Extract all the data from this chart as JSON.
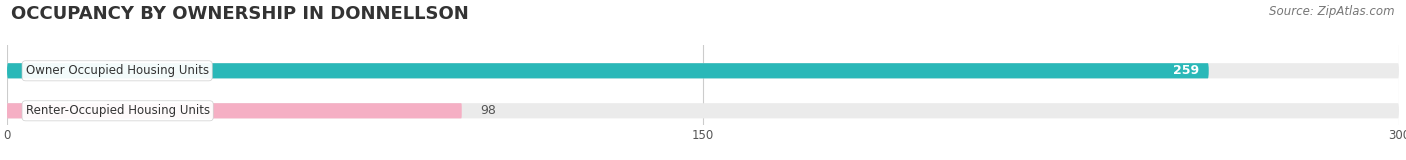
{
  "title": "OCCUPANCY BY OWNERSHIP IN DONNELLSON",
  "source": "Source: ZipAtlas.com",
  "categories": [
    "Owner Occupied Housing Units",
    "Renter-Occupied Housing Units"
  ],
  "values": [
    259,
    98
  ],
  "bar_colors": [
    "#2ab8b8",
    "#f5afc4"
  ],
  "xlim": [
    0,
    300
  ],
  "xticks": [
    0,
    150,
    300
  ],
  "title_fontsize": 13,
  "source_fontsize": 8.5,
  "bar_label_fontsize": 9,
  "category_fontsize": 8.5,
  "figsize": [
    14.06,
    1.6
  ],
  "dpi": 100,
  "bg_color": "#ffffff",
  "bar_bg_color": "#ebebeb",
  "grid_color": "#cccccc",
  "bar_height": 0.38
}
